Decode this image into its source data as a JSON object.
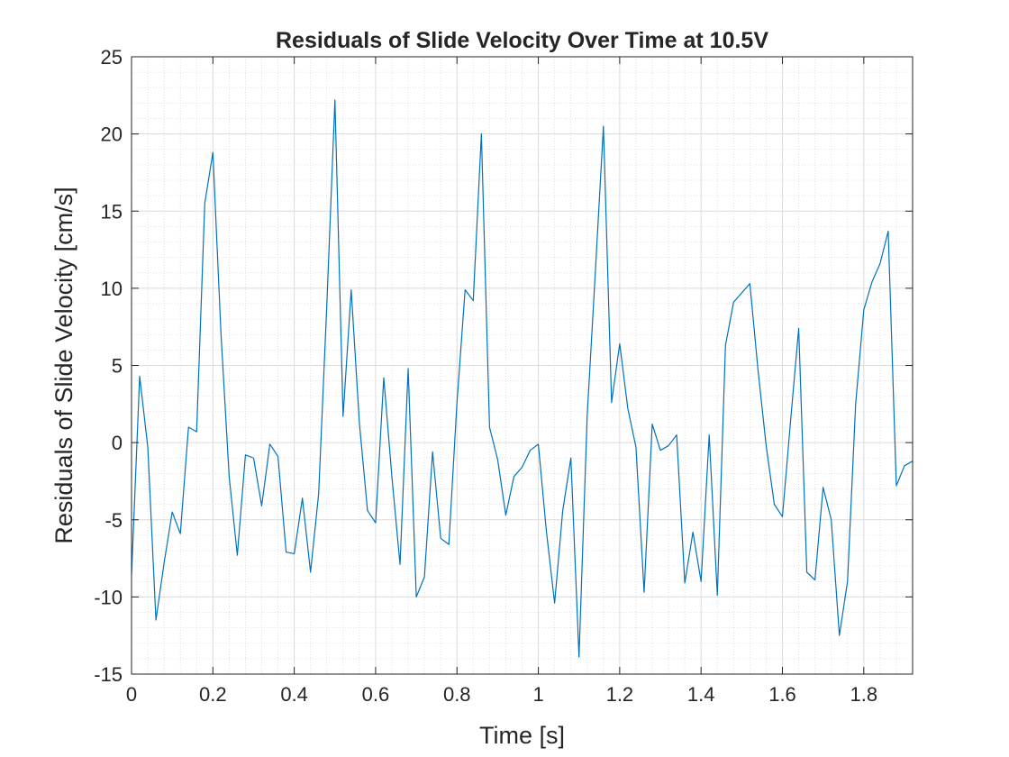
{
  "chart_data": {
    "type": "line",
    "title": "Residuals of Slide Velocity Over Time at 10.5V",
    "xlabel": "Time [s]",
    "ylabel": "Residuals of Slide Velocity [cm/s]",
    "xlim": [
      0,
      1.92
    ],
    "ylim": [
      -15,
      25
    ],
    "xticks": [
      0,
      0.2,
      0.4,
      0.6,
      0.8,
      1,
      1.2,
      1.4,
      1.6,
      1.8
    ],
    "xtick_labels": [
      "0",
      "0.2",
      "0.4",
      "0.6",
      "0.8",
      "1",
      "1.2",
      "1.4",
      "1.6",
      "1.8"
    ],
    "yticks": [
      -15,
      -10,
      -5,
      0,
      5,
      10,
      15,
      20,
      25
    ],
    "ytick_labels": [
      "-15",
      "-10",
      "-5",
      "0",
      "5",
      "10",
      "15",
      "20",
      "25"
    ],
    "grid": true,
    "minor_grid": true,
    "line_color": "#0072bd",
    "series": [
      {
        "x": [
          0,
          0.02,
          0.04,
          0.06,
          0.08,
          0.1,
          0.12,
          0.14,
          0.16,
          0.18,
          0.2,
          0.22,
          0.24,
          0.26,
          0.28,
          0.3,
          0.32,
          0.34,
          0.36,
          0.38,
          0.4,
          0.42,
          0.44,
          0.46,
          0.48,
          0.5,
          0.52,
          0.54,
          0.56,
          0.58,
          0.6,
          0.62,
          0.64,
          0.66,
          0.68,
          0.7,
          0.72,
          0.74,
          0.76,
          0.78,
          0.8,
          0.82,
          0.84,
          0.86,
          0.88,
          0.9,
          0.92,
          0.94,
          0.96,
          0.98,
          1.0,
          1.02,
          1.04,
          1.06,
          1.08,
          1.1,
          1.12,
          1.14,
          1.16,
          1.18,
          1.2,
          1.22,
          1.24,
          1.26,
          1.28,
          1.3,
          1.32,
          1.34,
          1.36,
          1.38,
          1.4,
          1.42,
          1.44,
          1.46,
          1.48,
          1.5,
          1.52,
          1.54,
          1.56,
          1.58,
          1.6,
          1.62,
          1.64,
          1.66,
          1.68,
          1.7,
          1.72,
          1.74,
          1.76,
          1.78,
          1.8,
          1.82,
          1.84,
          1.86,
          1.88,
          1.9,
          1.92
        ],
        "values": [
          -8.6,
          4.3,
          -0.3,
          -11.5,
          -7.8,
          -4.5,
          -5.9,
          1.0,
          0.7,
          15.5,
          18.8,
          7.0,
          -2.2,
          -7.3,
          -0.8,
          -1.0,
          -4.1,
          -0.1,
          -0.9,
          -7.1,
          -7.2,
          -3.6,
          -8.4,
          -3.3,
          8.9,
          22.2,
          1.7,
          9.9,
          1.3,
          -4.4,
          -5.2,
          4.2,
          -2.2,
          -7.9,
          4.8,
          -10.0,
          -8.7,
          -0.6,
          -6.2,
          -6.6,
          2.6,
          9.9,
          9.2,
          20.0,
          1.0,
          -1.1,
          -4.7,
          -2.2,
          -1.6,
          -0.5,
          -0.1,
          -5.8,
          -10.4,
          -4.4,
          -1.0,
          -13.9,
          1.7,
          11.0,
          20.5,
          2.6,
          6.4,
          2.2,
          -0.3,
          -9.7,
          1.2,
          -0.5,
          -0.2,
          0.5,
          -9.1,
          -5.8,
          -9.0,
          0.5,
          -9.9,
          6.3,
          9.1,
          9.7,
          10.3,
          4.7,
          -0.2,
          -4.0,
          -4.8,
          1.4,
          7.4,
          -8.4,
          -8.9,
          -2.9,
          -5.0,
          -12.5,
          -9.0,
          2.5,
          8.6,
          10.4,
          11.6,
          13.7,
          -2.8,
          -1.5,
          -1.2
        ]
      }
    ]
  }
}
